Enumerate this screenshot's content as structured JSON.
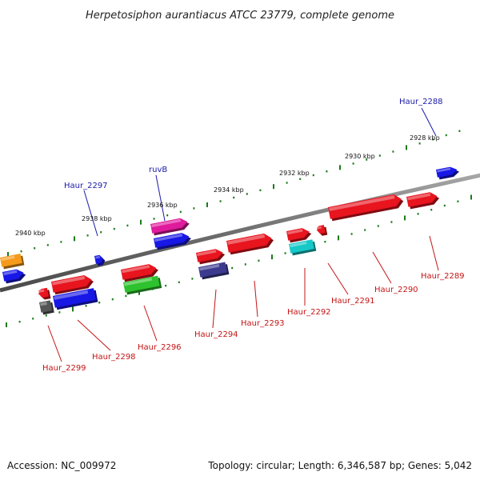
{
  "title": "Herpetosiphon aurantiacus ATCC 23779, complete genome",
  "footer": {
    "accession": "Accession: NC_009972",
    "summary": "Topology: circular; Length: 6,346,587 bp; Genes: 5,042"
  },
  "backbone_color": "#6e6e6e",
  "tick_labels": [
    "2928 kbp",
    "2930 kbp",
    "2932 kbp",
    "2934 kbp",
    "2936 kbp",
    "2938 kbp",
    "2940 kbp"
  ],
  "gene_labels_top": [
    "Haur_2288",
    "ruvB",
    "Haur_2297"
  ],
  "gene_labels_bottom": [
    "Haur_2289",
    "Haur_2290",
    "Haur_2291",
    "Haur_2292",
    "Haur_2293",
    "Haur_2294",
    "Haur_2296",
    "Haur_2298",
    "Haur_2299"
  ],
  "colors": {
    "red": "#e8141e",
    "blue": "#1717e6",
    "magenta": "#e01a9c",
    "green": "#2ec22e",
    "cyan": "#17c8c8",
    "indigo": "#3c3a8e",
    "orange": "#f59a1a",
    "gray": "#555555",
    "tick_green": "#1a7a1a"
  }
}
